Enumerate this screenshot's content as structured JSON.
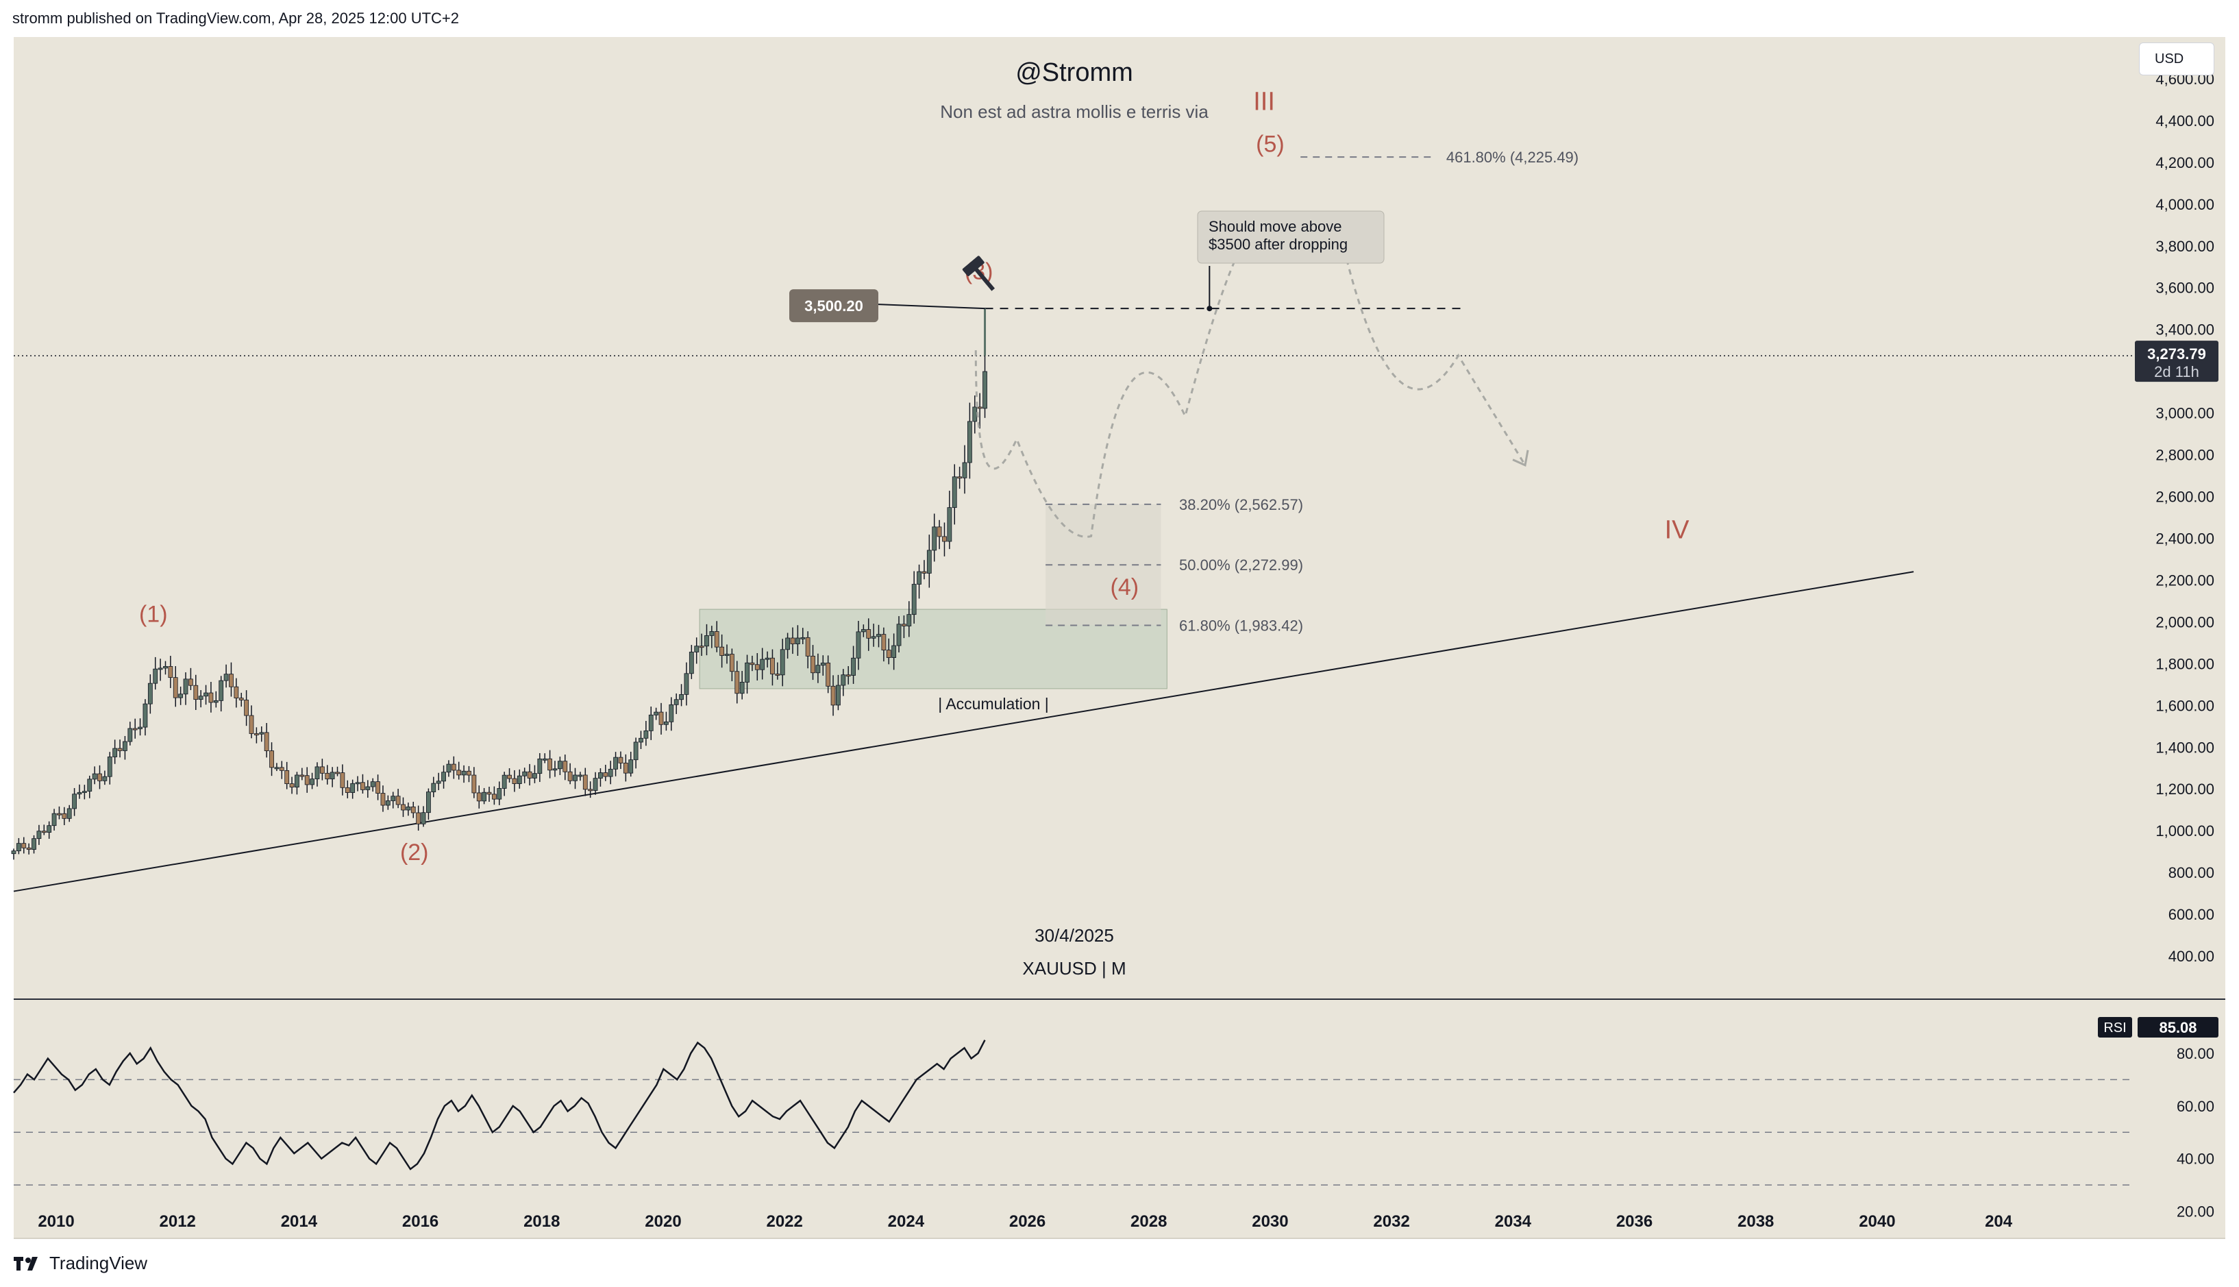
{
  "header": {
    "text": "stromm published on TradingView.com, Apr 28, 2025 12:00 UTC+2"
  },
  "currency_button": "USD",
  "footer": {
    "brand": "TradingView"
  },
  "colors": {
    "background": "#e9e5da",
    "candle_up": "#5a7268",
    "candle_down": "#a9825e",
    "wave_label": "#b5574b",
    "accumulation_box": "#c9d3c3",
    "price_tag": "#786f66",
    "rsi_line": "#131722"
  },
  "chart_data": {
    "type": "candlestick",
    "title": "@Stromm",
    "subtitle": "Non est ad astra mollis e terris via",
    "symbol_label": "XAUUSD | M",
    "date_label": "30/4/2025",
    "price_axis": {
      "ticks": [
        "400.00",
        "600.00",
        "800.00",
        "1,000.00",
        "1,200.00",
        "1,400.00",
        "1,600.00",
        "1,800.00",
        "2,000.00",
        "2,200.00",
        "2,400.00",
        "2,600.00",
        "2,800.00",
        "3,000.00",
        "3,200.00",
        "3,400.00",
        "3,600.00",
        "3,800.00",
        "4,000.00",
        "4,200.00",
        "4,400.00",
        "4,600.00"
      ],
      "range": [
        200,
        4800
      ]
    },
    "time_axis": {
      "ticks": [
        "2010",
        "2012",
        "2014",
        "2016",
        "2018",
        "2020",
        "2022",
        "2024",
        "2026",
        "2028",
        "2030",
        "2032",
        "2034",
        "2036",
        "2038",
        "2040",
        "204"
      ],
      "range": [
        2009.3,
        2044.2
      ]
    },
    "current_price": {
      "value": "3,273.79",
      "countdown": "2d 11h",
      "price": 3273.79
    },
    "price_tag": {
      "label": "3,500.20",
      "value": 3500.2
    },
    "monthly_close_path": [
      [
        2009.3,
        890
      ],
      [
        2009.8,
        1000
      ],
      [
        2010.3,
        1150
      ],
      [
        2010.8,
        1300
      ],
      [
        2011.2,
        1450
      ],
      [
        2011.55,
        1650
      ],
      [
        2011.67,
        1820
      ],
      [
        2012.0,
        1680
      ],
      [
        2012.5,
        1640
      ],
      [
        2012.9,
        1710
      ],
      [
        2013.3,
        1450
      ],
      [
        2013.6,
        1320
      ],
      [
        2013.9,
        1210
      ],
      [
        2014.3,
        1290
      ],
      [
        2014.7,
        1230
      ],
      [
        2015.2,
        1200
      ],
      [
        2015.6,
        1130
      ],
      [
        2015.95,
        1060
      ],
      [
        2016.3,
        1250
      ],
      [
        2016.6,
        1330
      ],
      [
        2016.95,
        1150
      ],
      [
        2017.5,
        1240
      ],
      [
        2017.9,
        1300
      ],
      [
        2018.3,
        1320
      ],
      [
        2018.7,
        1200
      ],
      [
        2019.0,
        1280
      ],
      [
        2019.4,
        1320
      ],
      [
        2019.7,
        1490
      ],
      [
        2020.2,
        1600
      ],
      [
        2020.45,
        1780
      ],
      [
        2020.6,
        1970
      ],
      [
        2020.9,
        1880
      ],
      [
        2021.2,
        1720
      ],
      [
        2021.6,
        1800
      ],
      [
        2021.9,
        1800
      ],
      [
        2022.2,
        1940
      ],
      [
        2022.6,
        1760
      ],
      [
        2022.8,
        1630
      ],
      [
        2023.1,
        1830
      ],
      [
        2023.4,
        1970
      ],
      [
        2023.8,
        1840
      ],
      [
        2024.0,
        2040
      ],
      [
        2024.2,
        2230
      ],
      [
        2024.4,
        2330
      ],
      [
        2024.6,
        2430
      ],
      [
        2024.8,
        2660
      ],
      [
        2025.0,
        2800
      ],
      [
        2025.15,
        3000
      ],
      [
        2025.3,
        3273.79
      ]
    ],
    "wave_labels": [
      {
        "text": "(1)",
        "x": 2011.6,
        "y": 2000
      },
      {
        "text": "(2)",
        "x": 2015.9,
        "y": 860
      },
      {
        "text": "(3)",
        "x": 2025.2,
        "y": 3640
      },
      {
        "text": "(4)",
        "x": 2027.6,
        "y": 2130
      },
      {
        "text": "(5)",
        "x": 2030.0,
        "y": 4250
      },
      {
        "text": "III",
        "x": 2029.9,
        "y": 4450
      },
      {
        "text": "IV",
        "x": 2036.7,
        "y": 2400
      }
    ],
    "fib_levels": [
      {
        "label": "38.20% (2,562.57)",
        "value": 2562.57
      },
      {
        "label": "50.00% (2,272.99)",
        "value": 2272.99
      },
      {
        "label": "61.80% (1,983.42)",
        "value": 1983.42
      },
      {
        "label": "461.80% (4,225.49)",
        "value": 4225.49
      }
    ],
    "resistance_level": 3500.2,
    "note": {
      "line1": "Should move above",
      "line2": "$3500 after dropping"
    },
    "accumulation": {
      "label": "| Accumulation |",
      "x": [
        2020.6,
        2028.3
      ],
      "y": [
        1680,
        2060
      ]
    },
    "trendline": [
      [
        2009.3,
        710
      ],
      [
        2040.6,
        2240
      ]
    ],
    "projection_path": [
      [
        2025.15,
        3300
      ],
      [
        2026.5,
        2450
      ],
      [
        2027.6,
        2370
      ],
      [
        2029.6,
        3600
      ],
      [
        2030.2,
        4060
      ],
      [
        2032.0,
        3800
      ],
      [
        2034.2,
        2750
      ]
    ],
    "rsi": {
      "label": "RSI",
      "value": "85.08",
      "ticks": [
        "20.00",
        "40.00",
        "60.00",
        "80.00"
      ],
      "range": [
        10,
        100
      ],
      "bands": [
        70,
        50,
        30
      ],
      "series_x": [
        2009.3,
        2025.3
      ],
      "series": [
        65,
        68,
        72,
        70,
        74,
        78,
        75,
        72,
        70,
        66,
        68,
        72,
        74,
        70,
        68,
        73,
        77,
        80,
        76,
        78,
        82,
        77,
        73,
        70,
        68,
        64,
        60,
        58,
        55,
        48,
        44,
        40,
        38,
        42,
        46,
        44,
        40,
        38,
        44,
        48,
        45,
        42,
        44,
        46,
        43,
        40,
        42,
        44,
        46,
        45,
        48,
        44,
        40,
        38,
        42,
        46,
        44,
        40,
        36,
        38,
        42,
        48,
        55,
        60,
        62,
        58,
        60,
        64,
        60,
        55,
        50,
        52,
        56,
        60,
        58,
        54,
        50,
        52,
        56,
        60,
        62,
        58,
        60,
        63,
        61,
        56,
        50,
        46,
        44,
        48,
        52,
        56,
        60,
        64,
        68,
        74,
        72,
        70,
        74,
        80,
        84,
        82,
        78,
        72,
        66,
        60,
        56,
        58,
        62,
        60,
        58,
        56,
        55,
        58,
        60,
        62,
        58,
        54,
        50,
        46,
        44,
        48,
        52,
        58,
        62,
        60,
        58,
        56,
        54,
        58,
        62,
        66,
        70,
        72,
        74,
        76,
        74,
        78,
        80,
        82,
        78,
        80,
        85
      ]
    }
  }
}
